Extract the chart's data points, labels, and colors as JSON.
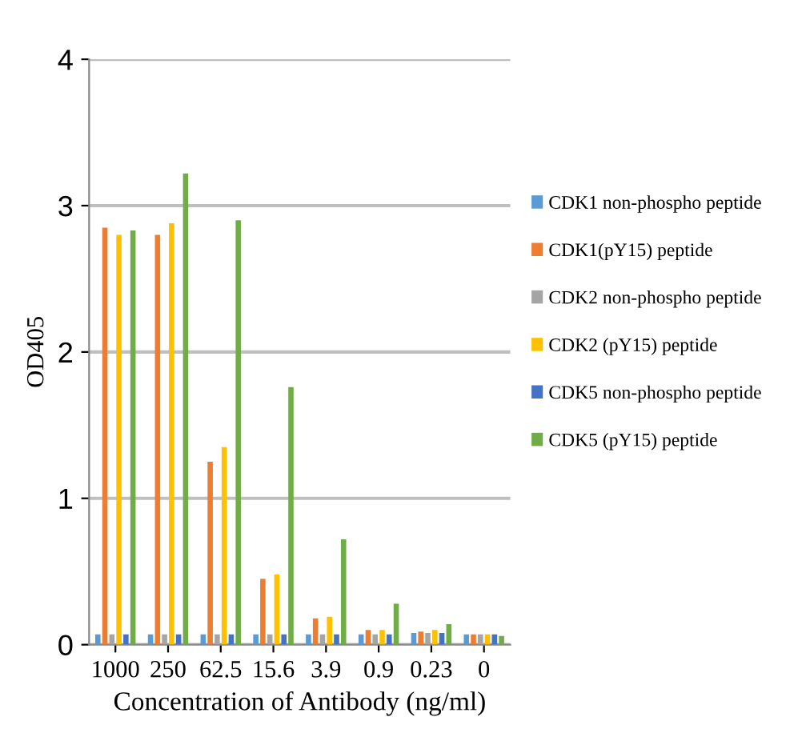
{
  "chart_data": {
    "type": "bar",
    "xlabel": "Concentration of Antibody (ng/ml)",
    "ylabel": "OD405",
    "categories": [
      "1000",
      "250",
      "62.5",
      "15.6",
      "3.9",
      "0.9",
      "0.23",
      "0"
    ],
    "series": [
      {
        "name": "CDK1 non-phospho peptide",
        "color": "#5b9bd5",
        "values": [
          0.07,
          0.07,
          0.07,
          0.07,
          0.07,
          0.07,
          0.08,
          0.07
        ]
      },
      {
        "name": "CDK1(pY15) peptide",
        "color": "#ed7d31",
        "values": [
          2.85,
          2.8,
          1.25,
          0.45,
          0.18,
          0.1,
          0.09,
          0.07
        ]
      },
      {
        "name": "CDK2 non-phospho peptide",
        "color": "#a5a5a5",
        "values": [
          0.07,
          0.07,
          0.07,
          0.07,
          0.07,
          0.07,
          0.08,
          0.07
        ]
      },
      {
        "name": "CDK2 (pY15) peptide",
        "color": "#ffc000",
        "values": [
          2.8,
          2.88,
          1.35,
          0.48,
          0.19,
          0.1,
          0.1,
          0.07
        ]
      },
      {
        "name": "CDK5 non-phospho peptide",
        "color": "#4472c4",
        "values": [
          0.07,
          0.07,
          0.07,
          0.07,
          0.07,
          0.07,
          0.08,
          0.07
        ]
      },
      {
        "name": "CDK5 (pY15) peptide",
        "color": "#70ad47",
        "values": [
          2.83,
          3.22,
          2.9,
          1.76,
          0.72,
          0.28,
          0.14,
          0.06
        ]
      }
    ],
    "ylim": [
      0,
      4
    ],
    "yticks": [
      0,
      1,
      2,
      3,
      4
    ],
    "grid": "y",
    "legend": "right"
  }
}
